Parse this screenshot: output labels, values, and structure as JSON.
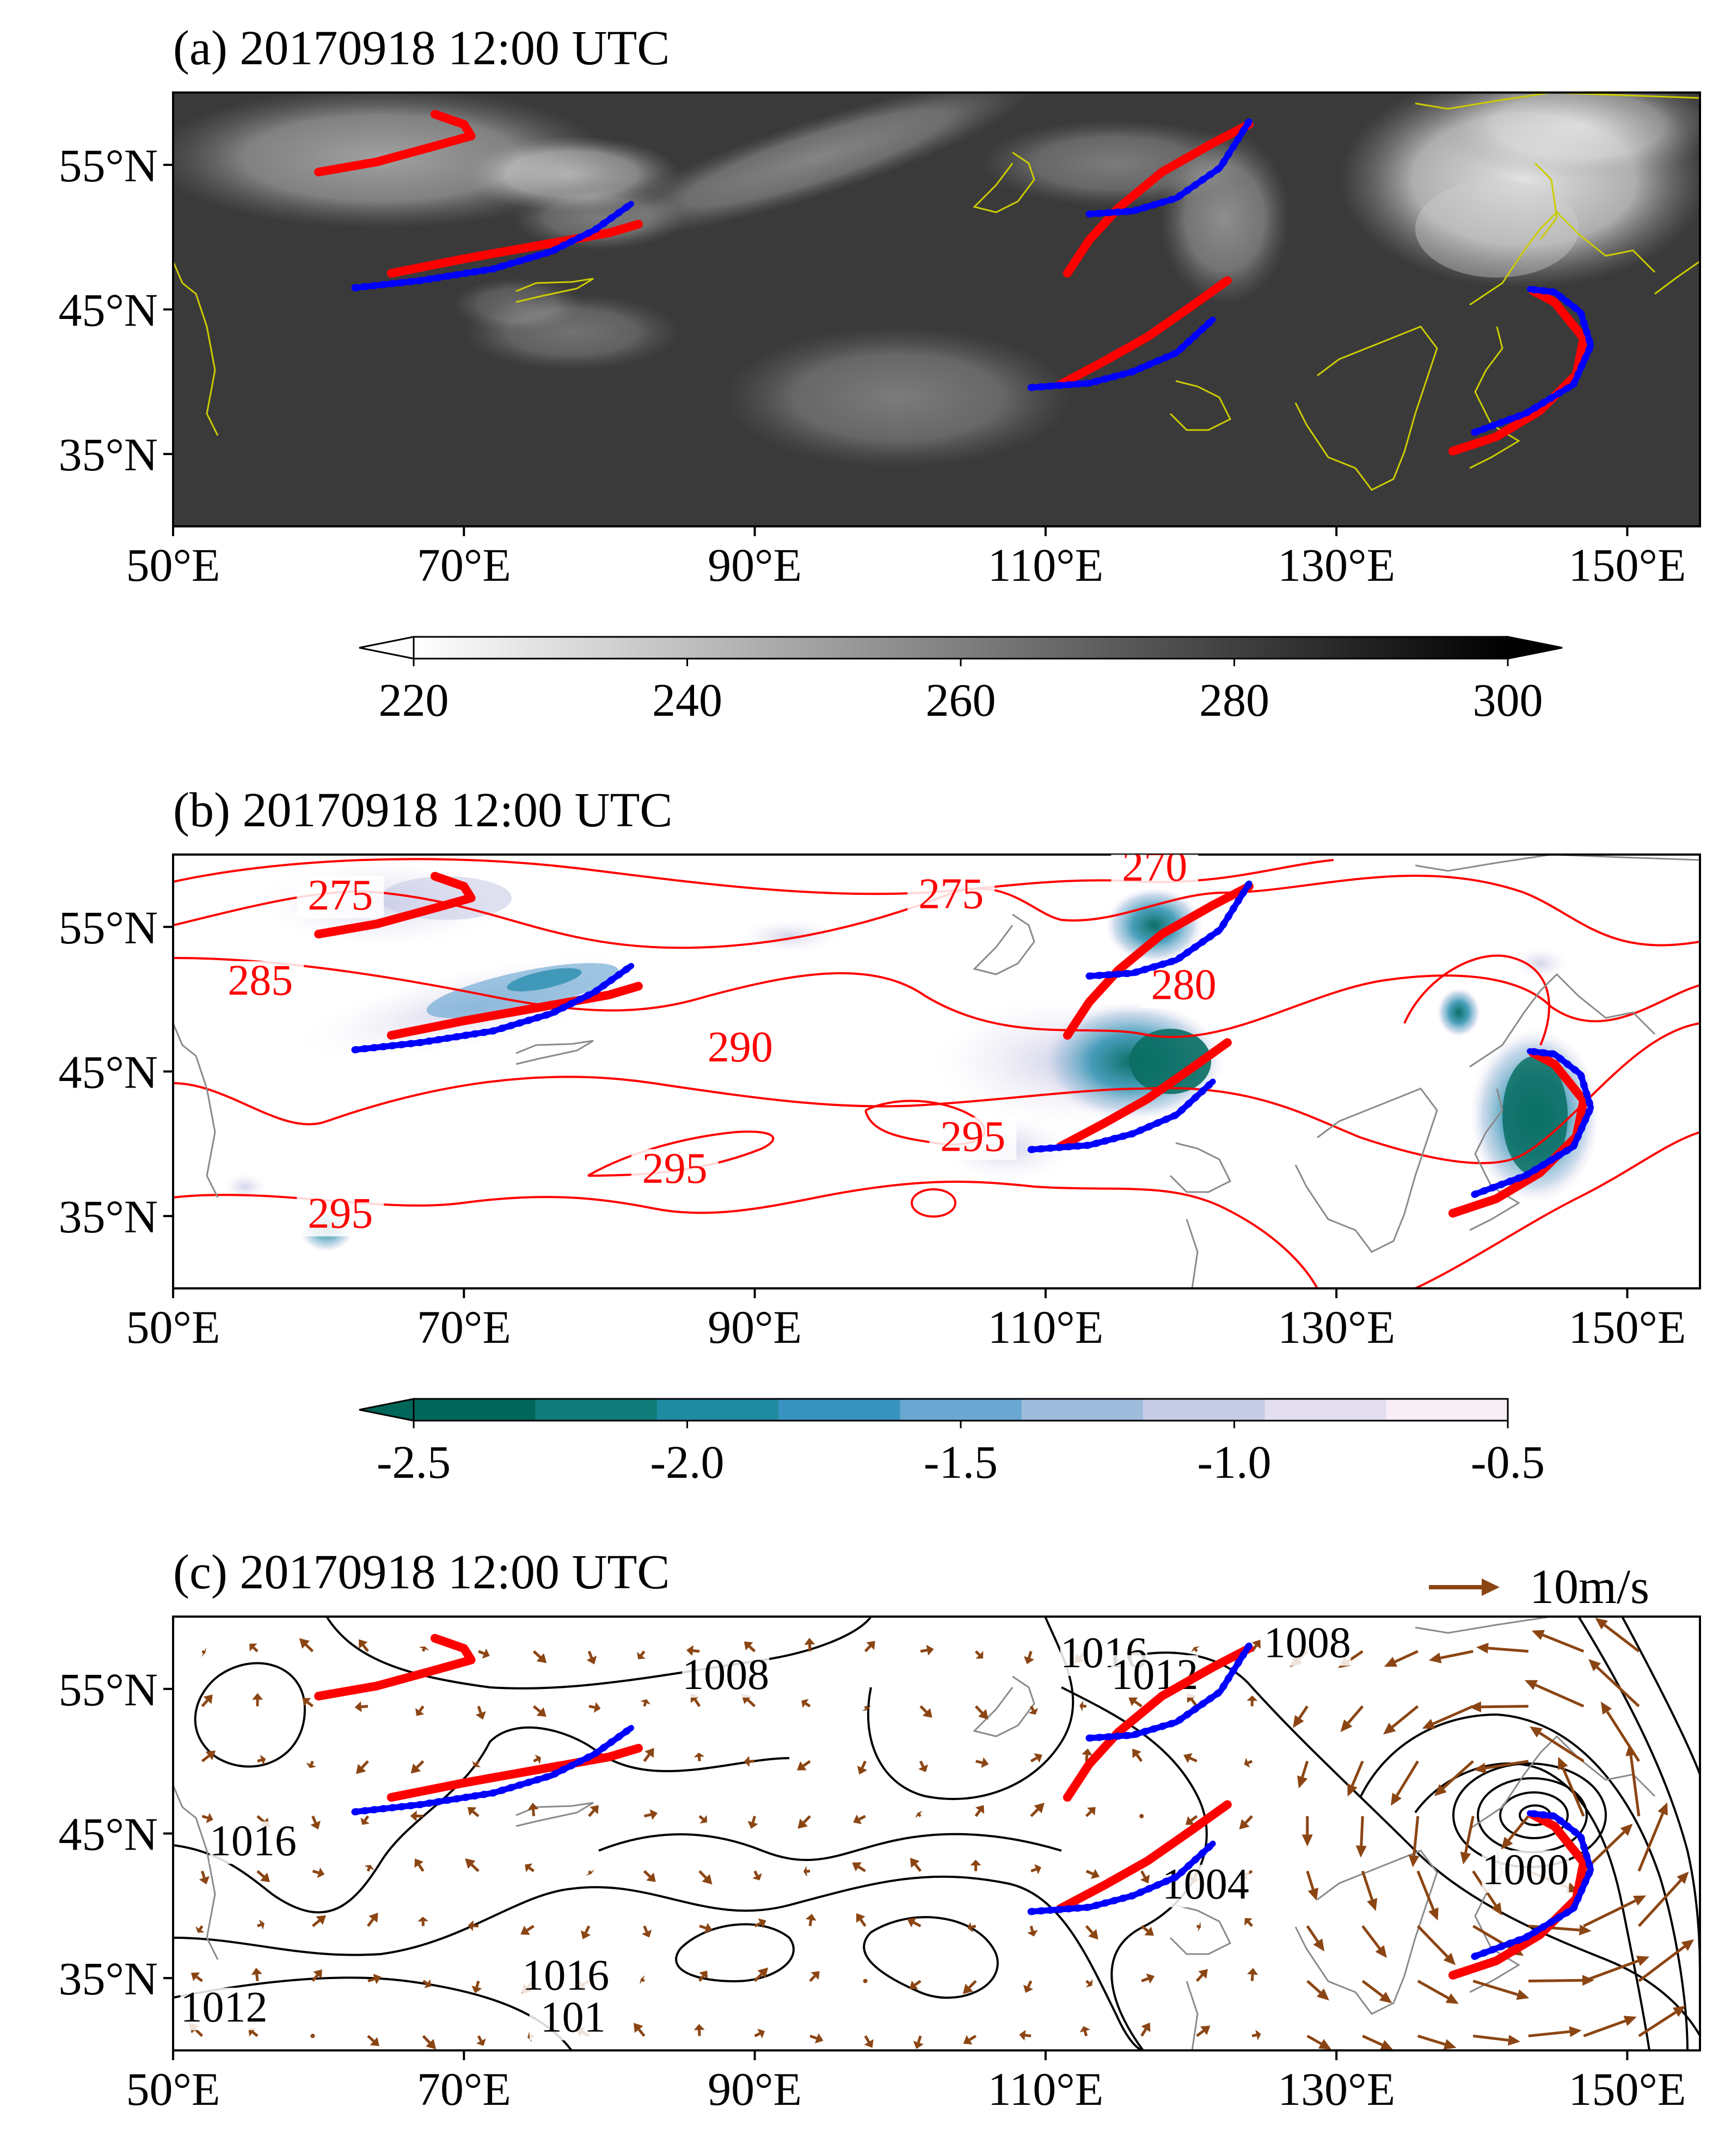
{
  "figure": {
    "map_extent": {
      "lon": [
        50,
        155
      ],
      "lat": [
        30,
        60
      ]
    },
    "x_ticks": [
      {
        "lon": 50,
        "label": "50°E"
      },
      {
        "lon": 70,
        "label": "70°E"
      },
      {
        "lon": 90,
        "label": "90°E"
      },
      {
        "lon": 110,
        "label": "110°E"
      },
      {
        "lon": 130,
        "label": "130°E"
      },
      {
        "lon": 150,
        "label": "150°E"
      }
    ],
    "y_ticks": [
      {
        "lat": 35,
        "label": "35°N"
      },
      {
        "lat": 45,
        "label": "45°N"
      },
      {
        "lat": 55,
        "label": "55°N"
      }
    ],
    "line_colors": {
      "red_front": "#ff0000",
      "blue_front": "#0000ff",
      "coast_a": "#cccc00",
      "coast_bc": "#8a8a8a",
      "theta_contour": "#ff0000",
      "slp_contour": "#000000",
      "wind_vector": "#8b4513"
    }
  },
  "panels": [
    {
      "id": "a",
      "title": "(a) 20170918 12:00 UTC",
      "field": "brightness temperature",
      "colorbar": {
        "ticks": [
          "220",
          "240",
          "260",
          "280",
          "300"
        ],
        "range": [
          220,
          300
        ],
        "gradient": [
          "#ffffff",
          "#000000"
        ],
        "extend": "both"
      }
    },
    {
      "id": "b",
      "title": "(b) 20170918 12:00 UTC",
      "field": "shaded with red contours",
      "contour_labels": [
        {
          "text": "275",
          "lon": 61.5,
          "lat": 56.2
        },
        {
          "text": "270",
          "lon": 117.5,
          "lat": 58.2
        },
        {
          "text": "275",
          "lon": 103.5,
          "lat": 56.3
        },
        {
          "text": "285",
          "lon": 56,
          "lat": 50.3
        },
        {
          "text": "290",
          "lon": 89,
          "lat": 45.7
        },
        {
          "text": "280",
          "lon": 119.5,
          "lat": 50
        },
        {
          "text": "295",
          "lon": 105,
          "lat": 39.5
        },
        {
          "text": "295",
          "lon": 84.5,
          "lat": 37.3
        },
        {
          "text": "295",
          "lon": 61.5,
          "lat": 34.2
        }
      ],
      "colorbar": {
        "ticks": [
          "-2.5",
          "-2.0",
          "-1.5",
          "-1.0",
          "-0.5"
        ],
        "range": [
          -2.5,
          -0.5
        ],
        "levels": [
          "#00665a",
          "#0f7b78",
          "#1f8aa0",
          "#3893c0",
          "#6aa8d2",
          "#9fbcdd",
          "#c7cce6",
          "#e4dff0",
          "#f7eef6"
        ],
        "extend": "min"
      }
    },
    {
      "id": "c",
      "title": "(c) 20170918 12:00 UTC",
      "field": "sea level pressure and wind",
      "quiver_key": "10m/s",
      "contour_labels": [
        {
          "text": "1008",
          "lon": 88,
          "lat": 55
        },
        {
          "text": "1016",
          "lon": 114,
          "lat": 56.5
        },
        {
          "text": "1012",
          "lon": 117.5,
          "lat": 55
        },
        {
          "text": "1008",
          "lon": 128,
          "lat": 57.2
        },
        {
          "text": "1016",
          "lon": 55.5,
          "lat": 43.5
        },
        {
          "text": "1004",
          "lon": 121,
          "lat": 40.5
        },
        {
          "text": "1000",
          "lon": 143,
          "lat": 41.5
        },
        {
          "text": "1016",
          "lon": 77,
          "lat": 34.2
        },
        {
          "text": "1012",
          "lon": 53.5,
          "lat": 32
        },
        {
          "text": "101",
          "lon": 77.5,
          "lat": 31.3
        }
      ]
    }
  ],
  "fronts": {
    "red": [
      [
        [
          60,
          54.5
        ],
        [
          64,
          55.2
        ],
        [
          68,
          56.3
        ],
        [
          70.5,
          57
        ],
        [
          70,
          57.8
        ],
        [
          68,
          58.5
        ]
      ],
      [
        [
          65,
          47.5
        ],
        [
          70,
          48.5
        ],
        [
          75,
          49.4
        ],
        [
          80,
          50.3
        ],
        [
          82,
          50.9
        ]
      ],
      [
        [
          111.5,
          47.5
        ],
        [
          113,
          49.8
        ],
        [
          115,
          52
        ],
        [
          118,
          54.5
        ],
        [
          121.5,
          56.5
        ],
        [
          124,
          57.8
        ]
      ],
      [
        [
          111,
          39.8
        ],
        [
          114,
          41.4
        ],
        [
          117,
          43.1
        ],
        [
          120,
          45.2
        ],
        [
          122.5,
          47
        ]
      ],
      [
        [
          138,
          35.2
        ],
        [
          141,
          36.2
        ],
        [
          144,
          38
        ],
        [
          146.5,
          40.5
        ],
        [
          147,
          43
        ],
        [
          145,
          45.5
        ],
        [
          143.5,
          46.3
        ]
      ]
    ],
    "blue": [
      [
        [
          62.5,
          46.5
        ],
        [
          67,
          47
        ],
        [
          72,
          47.8
        ],
        [
          76,
          49
        ],
        [
          79,
          50.5
        ],
        [
          81.5,
          52.3
        ]
      ],
      [
        [
          113,
          51.6
        ],
        [
          116,
          51.8
        ],
        [
          119,
          52.7
        ],
        [
          122,
          54.8
        ],
        [
          124,
          58
        ]
      ],
      [
        [
          109,
          39.6
        ],
        [
          113,
          39.9
        ],
        [
          116,
          40.7
        ],
        [
          119,
          42
        ],
        [
          121.5,
          44.3
        ]
      ],
      [
        [
          139.5,
          36.5
        ],
        [
          143,
          37.8
        ],
        [
          146.3,
          39.8
        ],
        [
          147.5,
          42.5
        ],
        [
          146.8,
          44.8
        ],
        [
          145,
          46.2
        ],
        [
          143.3,
          46.4
        ]
      ]
    ]
  }
}
